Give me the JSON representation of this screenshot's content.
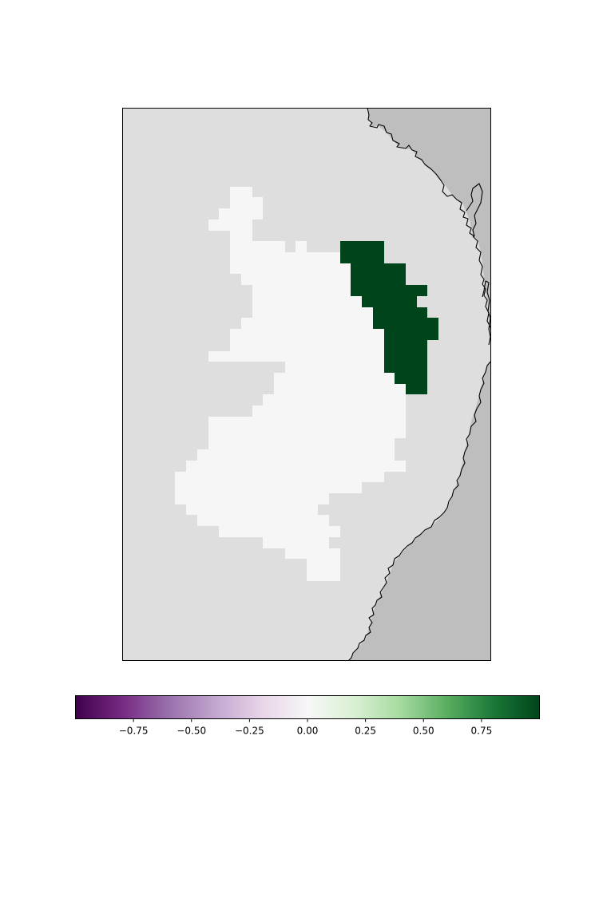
{
  "map": {
    "colors": {
      "frame": "#000000",
      "ocean": "#dedede",
      "land": "#bebebe",
      "coastline": "#000000",
      "zero_value_region": "#f6f6f6",
      "positive_value_region": "#00441b"
    },
    "regions": [
      {
        "name": "zero-value-region",
        "value": 0.0
      },
      {
        "name": "positive-value-region",
        "value": 1.0
      }
    ]
  },
  "colorbar": {
    "colormap": "PRGn",
    "orientation": "horizontal",
    "range": [
      -1.0,
      1.0
    ],
    "stops": [
      "#40004b",
      "#762a83",
      "#9970ab",
      "#c2a5cf",
      "#e7d4e8",
      "#f7f7f7",
      "#d9f0d3",
      "#a6dba0",
      "#5aae61",
      "#1b7837",
      "#00441b"
    ],
    "ticks": [
      {
        "value": -0.75,
        "label": "−0.75"
      },
      {
        "value": -0.5,
        "label": "−0.50"
      },
      {
        "value": -0.25,
        "label": "−0.25"
      },
      {
        "value": 0.0,
        "label": "0.00"
      },
      {
        "value": 0.25,
        "label": "0.25"
      },
      {
        "value": 0.5,
        "label": "0.50"
      },
      {
        "value": 0.75,
        "label": "0.75"
      }
    ]
  }
}
